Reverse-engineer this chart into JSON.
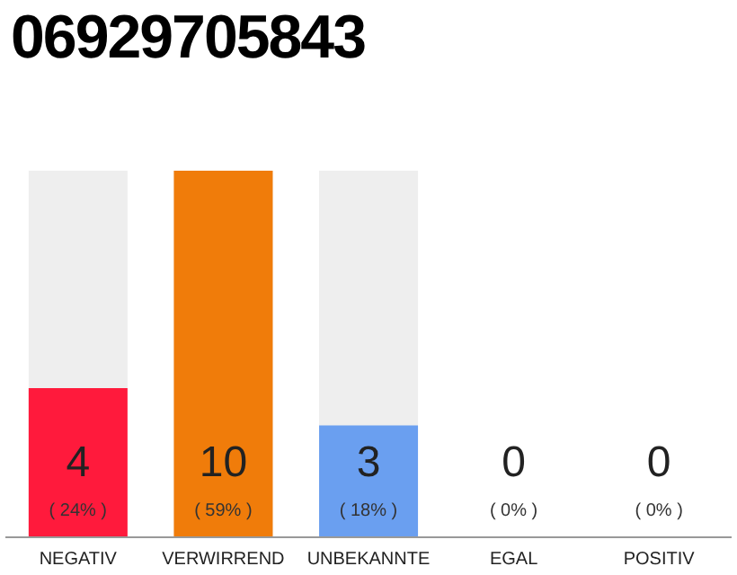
{
  "chart_data": {
    "type": "bar",
    "title": "06929705843",
    "categories": [
      "NEGATIV",
      "VERWIRREND",
      "UNBEKANNTE",
      "EGAL",
      "POSITIV"
    ],
    "values": [
      24,
      59,
      18,
      0,
      0
    ],
    "colors": [
      "#ff1a3c",
      "#f07c0a",
      "#6a9ff0",
      "#999999",
      "#999999"
    ],
    "value_labels": [
      "4\n( 24% )",
      "10\n( 59% )",
      "3\n( 18% )",
      "0\n( 0% )",
      "0\n( 0% )"
    ]
  }
}
